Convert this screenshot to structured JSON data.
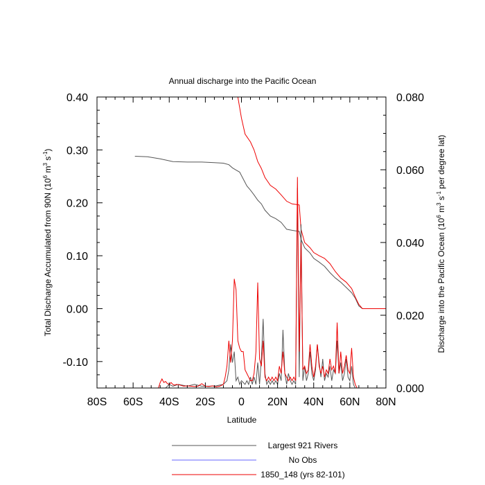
{
  "chart_data": {
    "type": "line",
    "title": "Annual discharge into the Pacific Ocean",
    "xlabel": "Latitude",
    "ylabel_left": "Total Discharge Accumulated from 90N (10",
    "ylabel_left_sup1": "6",
    "ylabel_left_mid": " m",
    "ylabel_left_sup2": "3",
    "ylabel_left_mid2": " s",
    "ylabel_left_sup3": "-1",
    "ylabel_left_end": ")",
    "ylabel_right": "Discharge into the Pacific Ocean (10",
    "ylabel_right_sup1": "6",
    "ylabel_right_mid": " m",
    "ylabel_right_sup2": "3",
    "ylabel_right_mid2": " s",
    "ylabel_right_sup3": "-1",
    "ylabel_right_end": " per degree lat)",
    "xlim": [
      -80,
      80
    ],
    "ylim_left": [
      -0.15,
      0.4
    ],
    "ylim_right": [
      0.0,
      0.08
    ],
    "x_ticks": [
      {
        "value": -80,
        "label": "80S"
      },
      {
        "value": -60,
        "label": "60S"
      },
      {
        "value": -40,
        "label": "40S"
      },
      {
        "value": -20,
        "label": "20S"
      },
      {
        "value": 0,
        "label": "0"
      },
      {
        "value": 20,
        "label": "20N"
      },
      {
        "value": 40,
        "label": "40N"
      },
      {
        "value": 60,
        "label": "60N"
      },
      {
        "value": 80,
        "label": "80N"
      }
    ],
    "y_ticks_left": [
      {
        "value": 0.4,
        "label": "0.40"
      },
      {
        "value": 0.3,
        "label": "0.30"
      },
      {
        "value": 0.2,
        "label": "0.20"
      },
      {
        "value": 0.1,
        "label": "0.10"
      },
      {
        "value": 0.0,
        "label": "0.00"
      },
      {
        "value": -0.1,
        "label": "-0.10"
      }
    ],
    "y_ticks_right": [
      {
        "value": 0.08,
        "label": "0.080"
      },
      {
        "value": 0.06,
        "label": "0.060"
      },
      {
        "value": 0.04,
        "label": "0.040"
      },
      {
        "value": 0.02,
        "label": "0.020"
      },
      {
        "value": 0.0,
        "label": "0.000"
      }
    ],
    "legend": [
      {
        "label": "Largest 921 Rivers",
        "color": "#555555"
      },
      {
        "label": "No Obs",
        "color": "#6666ff"
      },
      {
        "label": "1850_148 (yrs 82-101)",
        "color": "#ee0000"
      }
    ],
    "series": [
      {
        "name": "Largest 921 Rivers",
        "axis": "left",
        "color": "#555555",
        "x": [
          -59,
          -52,
          -45,
          -38,
          -30,
          -22,
          -15,
          -10,
          -7,
          -5,
          -3,
          -1,
          1,
          3,
          5,
          7,
          9,
          11,
          13,
          16,
          19,
          22,
          25,
          28,
          30,
          32,
          33,
          35,
          38,
          40,
          43,
          46,
          49,
          52,
          55,
          58,
          61,
          63,
          65,
          67,
          70,
          73,
          76,
          80
        ],
        "y": [
          0.288,
          0.287,
          0.283,
          0.278,
          0.277,
          0.277,
          0.276,
          0.275,
          0.272,
          0.266,
          0.262,
          0.258,
          0.245,
          0.232,
          0.224,
          0.215,
          0.205,
          0.198,
          0.186,
          0.175,
          0.17,
          0.163,
          0.15,
          0.148,
          0.147,
          0.146,
          0.131,
          0.115,
          0.105,
          0.095,
          0.088,
          0.08,
          0.068,
          0.058,
          0.05,
          0.04,
          0.03,
          0.02,
          0.005,
          0.0,
          0.0,
          0.0,
          0.0,
          0.0
        ]
      },
      {
        "name": "1850_148 (yrs 82-101)",
        "axis": "left",
        "color": "#ee0000",
        "x": [
          -2,
          -1,
          0,
          1,
          2,
          3,
          5,
          7,
          9,
          11,
          13,
          16,
          19,
          22,
          25,
          28,
          30,
          32,
          33,
          35,
          38,
          40,
          43,
          46,
          49,
          52,
          55,
          58,
          61,
          63,
          65,
          67,
          70,
          73,
          76,
          80
        ],
        "y": [
          0.4,
          0.38,
          0.36,
          0.345,
          0.33,
          0.325,
          0.315,
          0.3,
          0.278,
          0.265,
          0.248,
          0.233,
          0.226,
          0.215,
          0.203,
          0.198,
          0.197,
          0.196,
          0.15,
          0.125,
          0.115,
          0.106,
          0.1,
          0.095,
          0.085,
          0.07,
          0.058,
          0.05,
          0.038,
          0.022,
          0.008,
          0.0,
          0.0,
          0.0,
          0.0,
          0.0
        ]
      },
      {
        "name": "Largest 921 Rivers (per degree)",
        "axis": "right",
        "color": "#555555",
        "x": [
          -80,
          -42,
          -40,
          -38,
          -35,
          -30,
          -26,
          -22,
          -18,
          -14,
          -10,
          -8,
          -7,
          -6,
          -5,
          -4,
          -3,
          -2,
          -1,
          0,
          1,
          2,
          3,
          4,
          5,
          6,
          7,
          8,
          9,
          10,
          11,
          12,
          13,
          14,
          15,
          16,
          17,
          18,
          19,
          20,
          21,
          22,
          23,
          24,
          25,
          26,
          27,
          28,
          29,
          30,
          31,
          32,
          33,
          34,
          35,
          36,
          37,
          38,
          39,
          40,
          41,
          42,
          43,
          44,
          45,
          46,
          47,
          48,
          49,
          50,
          51,
          52,
          53,
          54,
          55,
          56,
          57,
          58,
          59,
          60,
          61,
          62,
          63,
          64,
          65,
          66,
          67,
          70,
          80
        ],
        "y": [
          0.0,
          0.0,
          0.001,
          0.0005,
          0.001,
          0.0005,
          0.001,
          0.0005,
          0.0005,
          0.0006,
          0.001,
          0.002,
          0.005,
          0.012,
          0.007,
          0.01,
          0.002,
          0.003,
          0.001,
          0.002,
          0.0015,
          0.001,
          0.002,
          0.001,
          0.003,
          0.001,
          0.003,
          0.001,
          0.007,
          0.001,
          0.008,
          0.019,
          0.004,
          0.001,
          0.002,
          0.001,
          0.002,
          0.001,
          0.002,
          0.001,
          0.004,
          0.002,
          0.016,
          0.004,
          0.001,
          0.004,
          0.002,
          0.001,
          0.002,
          0.001,
          0.055,
          0.003,
          0.045,
          0.002,
          0.006,
          0.002,
          0.004,
          0.01,
          0.004,
          0.002,
          0.005,
          0.012,
          0.007,
          0.003,
          0.008,
          0.002,
          0.004,
          0.003,
          0.006,
          0.002,
          0.005,
          0.004,
          0.013,
          0.004,
          0.007,
          0.002,
          0.004,
          0.008,
          0.003,
          0.002,
          0.006,
          0.001,
          0.0,
          0.0,
          0.0,
          0.0,
          0.0,
          0.0,
          0.0
        ]
      },
      {
        "name": "1850_148 (yrs 82-101) (per degree)",
        "axis": "right",
        "color": "#ee0000",
        "x": [
          -80,
          -46,
          -45,
          -44,
          -43,
          -42,
          -41,
          -40,
          -39,
          -38,
          -37,
          -36,
          -34,
          -32,
          -30,
          -28,
          -26,
          -24,
          -22,
          -20,
          -18,
          -16,
          -14,
          -12,
          -10,
          -9,
          -8,
          -7,
          -6,
          -5,
          -4,
          -3,
          -2,
          -1,
          0,
          1,
          2,
          3,
          4,
          5,
          6,
          7,
          8,
          9,
          10,
          11,
          12,
          13,
          14,
          15,
          16,
          17,
          18,
          19,
          20,
          21,
          22,
          23,
          24,
          25,
          26,
          27,
          28,
          29,
          30,
          31,
          32,
          33,
          34,
          35,
          36,
          37,
          38,
          39,
          40,
          41,
          42,
          43,
          44,
          45,
          46,
          47,
          48,
          49,
          50,
          51,
          52,
          53,
          54,
          55,
          56,
          57,
          58,
          59,
          60,
          61,
          62,
          63,
          64,
          65,
          66,
          67,
          70,
          80
        ],
        "y": [
          0.0,
          0.0,
          0.0015,
          0.0025,
          0.0015,
          0.0018,
          0.0012,
          0.001,
          0.0015,
          0.001,
          0.0008,
          0.001,
          0.0008,
          0.0005,
          0.0006,
          0.0005,
          0.0004,
          0.0005,
          0.0012,
          0.0005,
          0.0004,
          0.0006,
          0.0003,
          0.0005,
          0.001,
          0.003,
          0.006,
          0.013,
          0.007,
          0.013,
          0.03,
          0.027,
          0.013,
          0.011,
          0.01,
          0.01,
          0.005,
          0.004,
          0.003,
          0.002,
          0.002,
          0.004,
          0.01,
          0.029,
          0.008,
          0.006,
          0.013,
          0.003,
          0.002,
          0.003,
          0.002,
          0.003,
          0.002,
          0.003,
          0.002,
          0.006,
          0.004,
          0.01,
          0.004,
          0.003,
          0.002,
          0.003,
          0.002,
          0.003,
          0.002,
          0.058,
          0.01,
          0.04,
          0.005,
          0.006,
          0.004,
          0.005,
          0.012,
          0.006,
          0.003,
          0.006,
          0.012,
          0.006,
          0.004,
          0.006,
          0.003,
          0.005,
          0.004,
          0.008,
          0.005,
          0.006,
          0.004,
          0.018,
          0.004,
          0.01,
          0.004,
          0.006,
          0.009,
          0.005,
          0.004,
          0.011,
          0.003,
          0.001,
          0.0,
          0.0,
          0.0,
          0.0,
          0.0,
          0.0
        ]
      }
    ]
  }
}
